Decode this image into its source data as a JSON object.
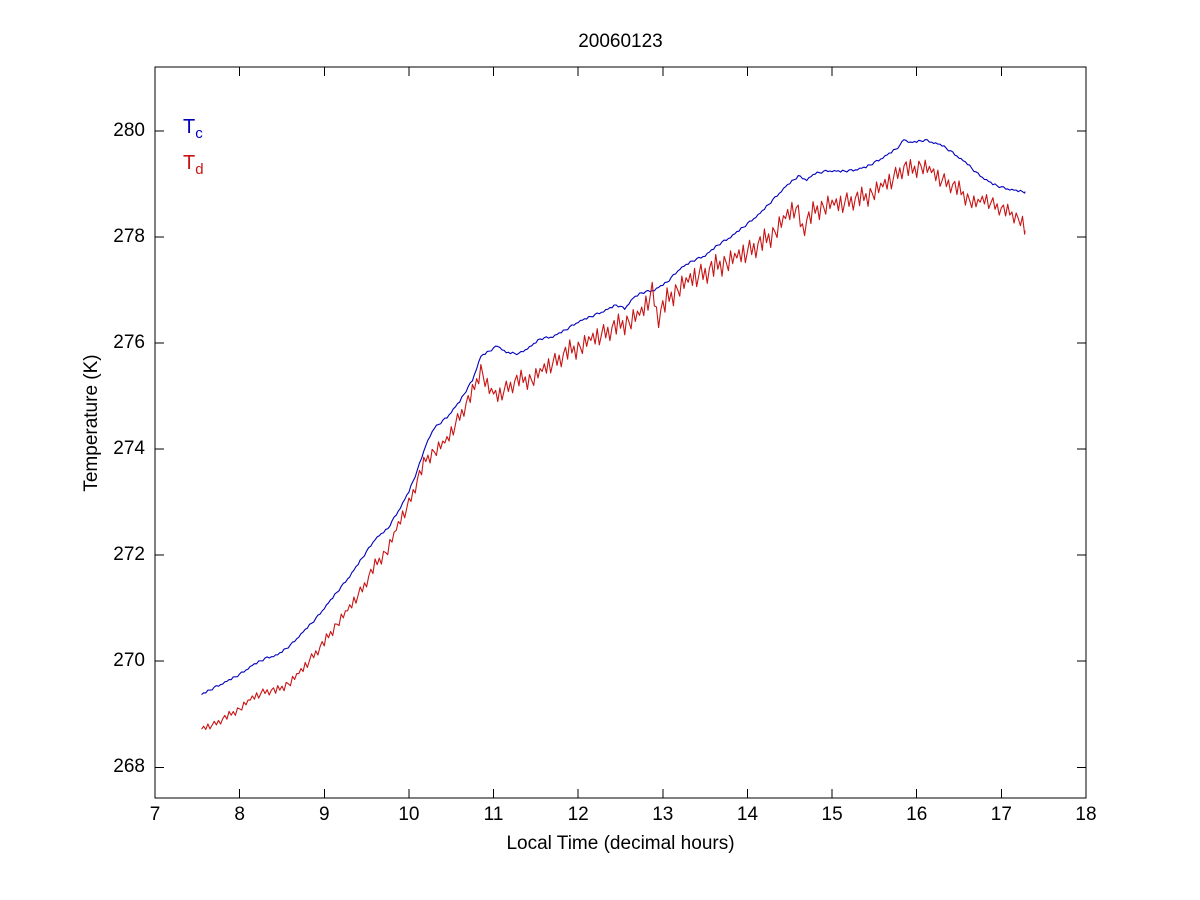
{
  "chart_data": {
    "type": "line",
    "title": "20060123",
    "xlabel": "Local Time (decimal hours)",
    "ylabel": "Temperature (K)",
    "xlim": [
      7,
      18
    ],
    "ylim": [
      267.42,
      281.21
    ],
    "xticks": [
      7,
      8,
      9,
      10,
      11,
      12,
      13,
      14,
      15,
      16,
      17,
      18
    ],
    "yticks": [
      268,
      270,
      272,
      274,
      276,
      278,
      280
    ],
    "grid": false,
    "box": true,
    "tick_direction": "in",
    "axis_color": "#000000",
    "background_color": "#ffffff",
    "legend": {
      "position": "top-left-inside",
      "items": [
        {
          "main": "T",
          "sub": "c",
          "color": "#0000BB"
        },
        {
          "main": "T",
          "sub": "d",
          "color": "#C81414"
        }
      ]
    },
    "sampling": {
      "t_start": 7.55,
      "t_end": 17.28,
      "step": 0.025
    },
    "series": [
      {
        "name": "Tc",
        "color": "#0000BB",
        "trend": [
          [
            7.55,
            269.37
          ],
          [
            7.7,
            269.5
          ],
          [
            7.85,
            269.62
          ],
          [
            8.0,
            269.75
          ],
          [
            8.15,
            269.92
          ],
          [
            8.3,
            270.05
          ],
          [
            8.45,
            270.12
          ],
          [
            8.6,
            270.3
          ],
          [
            8.75,
            270.55
          ],
          [
            8.9,
            270.8
          ],
          [
            9.0,
            271.0
          ],
          [
            9.15,
            271.3
          ],
          [
            9.3,
            271.6
          ],
          [
            9.45,
            271.95
          ],
          [
            9.6,
            272.3
          ],
          [
            9.75,
            272.5
          ],
          [
            9.9,
            272.9
          ],
          [
            10.0,
            273.2
          ],
          [
            10.1,
            273.6
          ],
          [
            10.2,
            274.08
          ],
          [
            10.3,
            274.4
          ],
          [
            10.45,
            274.6
          ],
          [
            10.6,
            274.9
          ],
          [
            10.75,
            275.3
          ],
          [
            10.85,
            275.75
          ],
          [
            10.95,
            275.85
          ],
          [
            11.05,
            275.95
          ],
          [
            11.15,
            275.82
          ],
          [
            11.3,
            275.8
          ],
          [
            11.45,
            275.95
          ],
          [
            11.55,
            276.08
          ],
          [
            11.7,
            276.12
          ],
          [
            11.85,
            276.25
          ],
          [
            12.0,
            276.4
          ],
          [
            12.15,
            276.5
          ],
          [
            12.3,
            276.6
          ],
          [
            12.45,
            276.72
          ],
          [
            12.55,
            276.65
          ],
          [
            12.65,
            276.85
          ],
          [
            12.75,
            276.95
          ],
          [
            12.9,
            277.0
          ],
          [
            13.05,
            277.15
          ],
          [
            13.2,
            277.4
          ],
          [
            13.35,
            277.55
          ],
          [
            13.5,
            277.65
          ],
          [
            13.65,
            277.85
          ],
          [
            13.8,
            278.0
          ],
          [
            14.0,
            278.25
          ],
          [
            14.15,
            278.45
          ],
          [
            14.3,
            278.7
          ],
          [
            14.45,
            278.95
          ],
          [
            14.6,
            279.15
          ],
          [
            14.7,
            279.08
          ],
          [
            14.8,
            279.2
          ],
          [
            14.95,
            279.25
          ],
          [
            15.1,
            279.24
          ],
          [
            15.25,
            279.26
          ],
          [
            15.4,
            279.32
          ],
          [
            15.55,
            279.45
          ],
          [
            15.7,
            279.6
          ],
          [
            15.8,
            279.72
          ],
          [
            15.85,
            279.85
          ],
          [
            15.92,
            279.78
          ],
          [
            16.0,
            279.8
          ],
          [
            16.1,
            279.83
          ],
          [
            16.2,
            279.78
          ],
          [
            16.3,
            279.73
          ],
          [
            16.4,
            279.62
          ],
          [
            16.5,
            279.5
          ],
          [
            16.6,
            279.38
          ],
          [
            16.7,
            279.22
          ],
          [
            16.8,
            279.1
          ],
          [
            16.9,
            279.0
          ],
          [
            17.0,
            278.94
          ],
          [
            17.1,
            278.9
          ],
          [
            17.2,
            278.87
          ],
          [
            17.28,
            278.85
          ]
        ],
        "jitter": [
          0,
          0.012,
          -0.012,
          0.02,
          0,
          -0.02,
          0.012,
          0.02,
          -0.012,
          0,
          -0.012,
          0.012
        ],
        "jitter_scale": [
          [
            7.55,
            1
          ],
          [
            17.28,
            1
          ]
        ]
      },
      {
        "name": "Td",
        "color": "#C81414",
        "trend": [
          [
            7.55,
            268.72
          ],
          [
            7.7,
            268.8
          ],
          [
            7.85,
            268.95
          ],
          [
            8.0,
            269.1
          ],
          [
            8.15,
            269.3
          ],
          [
            8.3,
            269.42
          ],
          [
            8.45,
            269.45
          ],
          [
            8.6,
            269.6
          ],
          [
            8.75,
            269.85
          ],
          [
            8.9,
            270.15
          ],
          [
            9.0,
            270.35
          ],
          [
            9.15,
            270.7
          ],
          [
            9.3,
            271.0
          ],
          [
            9.45,
            271.35
          ],
          [
            9.6,
            271.8
          ],
          [
            9.75,
            272.1
          ],
          [
            9.9,
            272.65
          ],
          [
            10.0,
            272.95
          ],
          [
            10.1,
            273.4
          ],
          [
            10.2,
            273.8
          ],
          [
            10.3,
            273.95
          ],
          [
            10.45,
            274.15
          ],
          [
            10.6,
            274.6
          ],
          [
            10.75,
            275.05
          ],
          [
            10.85,
            275.5
          ],
          [
            10.95,
            275.1
          ],
          [
            11.05,
            274.98
          ],
          [
            11.15,
            275.12
          ],
          [
            11.3,
            275.3
          ],
          [
            11.45,
            275.3
          ],
          [
            11.6,
            275.5
          ],
          [
            11.75,
            275.65
          ],
          [
            11.9,
            275.85
          ],
          [
            12.0,
            275.9
          ],
          [
            12.15,
            276.05
          ],
          [
            12.3,
            276.15
          ],
          [
            12.45,
            276.3
          ],
          [
            12.6,
            276.4
          ],
          [
            12.75,
            276.55
          ],
          [
            12.88,
            276.95
          ],
          [
            12.94,
            276.45
          ],
          [
            13.05,
            276.8
          ],
          [
            13.2,
            277.05
          ],
          [
            13.35,
            277.2
          ],
          [
            13.5,
            277.3
          ],
          [
            13.65,
            277.45
          ],
          [
            13.8,
            277.55
          ],
          [
            14.0,
            277.7
          ],
          [
            14.15,
            277.85
          ],
          [
            14.3,
            278.05
          ],
          [
            14.45,
            278.35
          ],
          [
            14.57,
            278.55
          ],
          [
            14.65,
            278.15
          ],
          [
            14.8,
            278.5
          ],
          [
            14.95,
            278.6
          ],
          [
            15.1,
            278.6
          ],
          [
            15.25,
            278.68
          ],
          [
            15.4,
            278.75
          ],
          [
            15.55,
            278.9
          ],
          [
            15.7,
            279.05
          ],
          [
            15.85,
            279.3
          ],
          [
            15.95,
            279.25
          ],
          [
            16.05,
            279.35
          ],
          [
            16.15,
            279.25
          ],
          [
            16.3,
            279.05
          ],
          [
            16.4,
            278.98
          ],
          [
            16.5,
            278.88
          ],
          [
            16.6,
            278.72
          ],
          [
            16.7,
            278.62
          ],
          [
            16.8,
            278.7
          ],
          [
            16.9,
            278.6
          ],
          [
            17.0,
            278.52
          ],
          [
            17.1,
            278.45
          ],
          [
            17.2,
            278.35
          ],
          [
            17.25,
            278.28
          ],
          [
            17.28,
            278.06
          ]
        ],
        "jitter": [
          0,
          0.1,
          -0.08,
          0.14,
          -0.12,
          0.02,
          0.16,
          -0.06,
          0.08,
          -0.14,
          0.04,
          0.12,
          -0.1,
          0.18,
          -0.04,
          0.06,
          -0.16,
          0.1,
          0,
          -0.12,
          0.14,
          -0.05,
          0.08
        ],
        "jitter_scale": [
          [
            7.55,
            0.4
          ],
          [
            8.5,
            0.5
          ],
          [
            9.5,
            0.7
          ],
          [
            10.5,
            0.9
          ],
          [
            11.5,
            1.1
          ],
          [
            12.5,
            1.3
          ],
          [
            13.5,
            1.4
          ],
          [
            14.5,
            1.3
          ],
          [
            15.5,
            1.2
          ],
          [
            16.5,
            1.0
          ],
          [
            17.28,
            0.8
          ]
        ]
      }
    ]
  }
}
